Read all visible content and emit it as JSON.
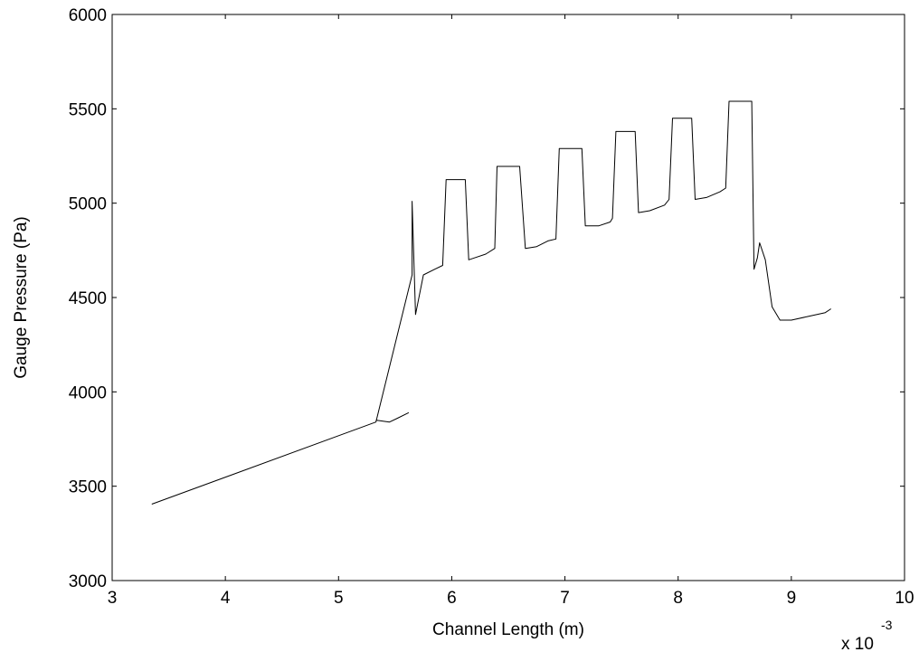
{
  "chart_data": {
    "type": "line",
    "xlabel": "Channel Length (m)",
    "ylabel": "Gauge Pressure (Pa)",
    "x_multiplier": {
      "base": "x 10",
      "exponent": "-3"
    },
    "xlim": [
      3,
      10
    ],
    "ylim": [
      3000,
      6000
    ],
    "x_ticks": [
      3,
      4,
      5,
      6,
      7,
      8,
      9,
      10
    ],
    "x_tick_labels": [
      "3",
      "4",
      "5",
      "6",
      "7",
      "8",
      "9",
      "10"
    ],
    "y_ticks": [
      3000,
      3500,
      4000,
      4500,
      5000,
      5500,
      6000
    ],
    "y_tick_labels": [
      "3000",
      "3500",
      "4000",
      "4500",
      "5000",
      "5500",
      "6000"
    ],
    "grid": false,
    "line_color": "#000000",
    "series": [
      {
        "x": [
          3.35,
          5.33,
          5.65,
          5.65,
          5.68,
          5.75,
          5.85,
          5.92,
          5.95,
          6.12,
          6.15,
          6.2,
          6.3,
          6.38,
          6.4,
          6.6,
          6.65,
          6.75,
          6.85,
          6.92,
          6.95,
          7.15,
          7.18,
          7.3,
          7.4,
          7.42,
          7.45,
          7.62,
          7.65,
          7.75,
          7.88,
          7.92,
          7.95,
          8.12,
          8.15,
          8.25,
          8.37,
          8.42,
          8.45,
          8.65,
          8.67,
          8.7,
          8.72,
          8.77,
          8.83,
          8.9,
          9.0,
          9.15,
          9.3,
          9.35
        ],
        "y": [
          3405,
          3840,
          4620,
          5010,
          4410,
          4620,
          4650,
          4670,
          5125,
          5125,
          4700,
          4710,
          4730,
          4760,
          5195,
          5195,
          4760,
          4770,
          4800,
          4810,
          5290,
          5290,
          4880,
          4880,
          4900,
          4920,
          5380,
          5380,
          4950,
          4960,
          4990,
          5020,
          5450,
          5450,
          5020,
          5030,
          5060,
          5080,
          5540,
          5540,
          4650,
          4710,
          4790,
          4700,
          4450,
          4380,
          4380,
          4400,
          4420,
          4440
        ]
      },
      {
        "x": [
          5.33,
          5.45,
          5.52,
          5.62
        ],
        "y": [
          3850,
          3840,
          3860,
          3890
        ]
      }
    ]
  }
}
